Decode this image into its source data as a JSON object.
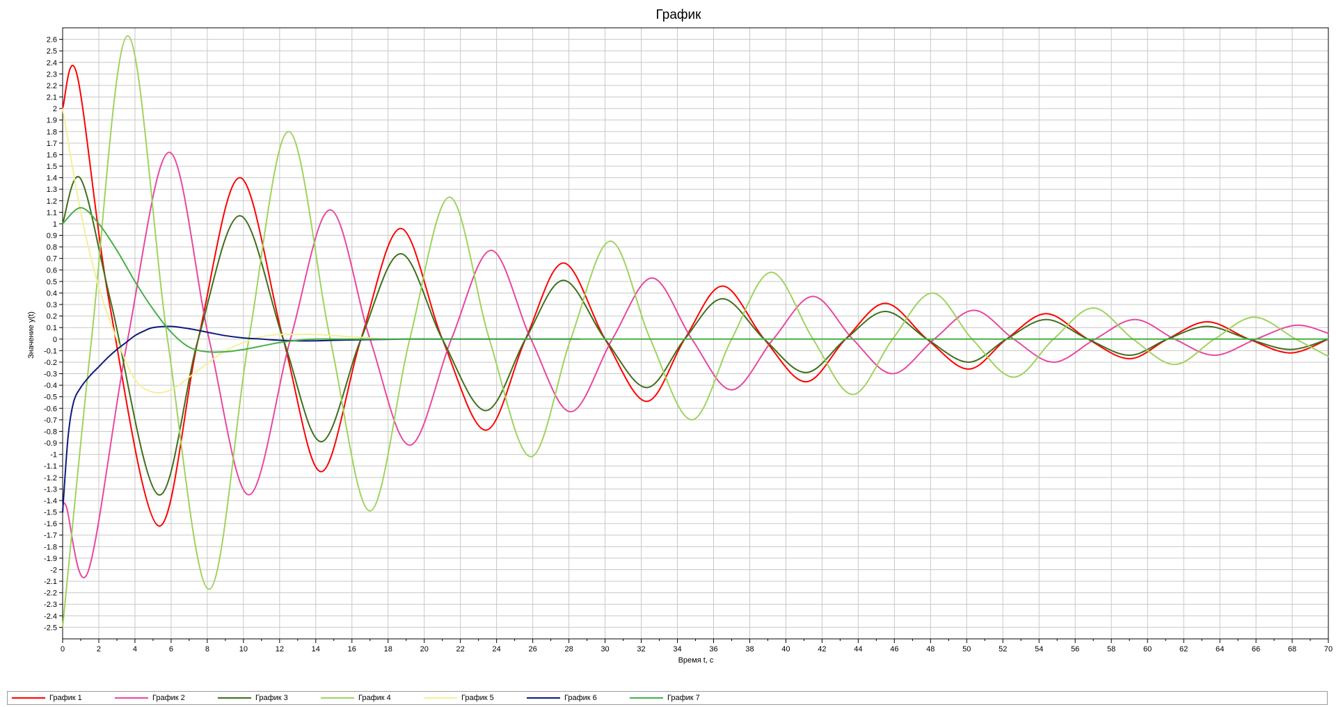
{
  "chart_data": {
    "type": "line",
    "title": "График",
    "xlabel": "Время t, с",
    "ylabel": "Значение y(t)",
    "xlim": [
      0,
      70
    ],
    "ylim": [
      -2.6,
      2.7
    ],
    "x_ticks": [
      0,
      2,
      4,
      6,
      8,
      10,
      12,
      14,
      16,
      18,
      20,
      22,
      24,
      26,
      28,
      30,
      32,
      34,
      36,
      38,
      40,
      42,
      44,
      46,
      48,
      50,
      52,
      54,
      56,
      58,
      60,
      62,
      64,
      66,
      68,
      70
    ],
    "y_tick_labels": [
      "2.6",
      "2.5",
      "2.4",
      "2.3",
      "2.2",
      "2.1",
      "2",
      "1.9",
      "1.8",
      "1.7",
      "1.6",
      "1.5",
      "1.4",
      "1.3",
      "1.2",
      "1.1",
      "1",
      "0.9",
      "0.8",
      "0.7",
      "0.6",
      "0.5",
      "0.4",
      "0.3",
      "0.2",
      "0.1",
      "0",
      "-0.1",
      "-0.2",
      "-0.3",
      "-0.4",
      "-0.5",
      "-0.6",
      "-0.7",
      "-0.8",
      "-0.9",
      "-1",
      "-1.1",
      "-1.2",
      "-1.3",
      "-1.4",
      "-1.5",
      "-1.6",
      "-1.7",
      "-1.8",
      "-1.9",
      "-2",
      "-2.1",
      "-2.2",
      "-2.3",
      "-2.4",
      "-2.5"
    ],
    "grid": true,
    "legend_position": "bottom",
    "series": [
      {
        "name": "График 1",
        "color": "#ff0000",
        "x": [
          0,
          0.8,
          2.6,
          5.3,
          7.5,
          9.8,
          12.2,
          14.3,
          16.5,
          18.7,
          21,
          23.4,
          25.6,
          27.7,
          30,
          32.3,
          34.4,
          36.5,
          38.8,
          41.1,
          43.3,
          45.5,
          47.8,
          50.1,
          52.2,
          54.4,
          56.7,
          59,
          61.1,
          63.3,
          65.6,
          67.9,
          70
        ],
        "y": [
          2,
          2.29,
          0.3,
          -1.62,
          0,
          1.4,
          0,
          -1.15,
          0,
          0.96,
          0,
          -0.79,
          0,
          0.66,
          0,
          -0.54,
          0,
          0.46,
          0,
          -0.37,
          0,
          0.31,
          0,
          -0.26,
          0,
          0.22,
          0,
          -0.17,
          0,
          0.15,
          0,
          -0.12,
          0
        ]
      },
      {
        "name": "График 2",
        "color": "#e8479e",
        "x": [
          0,
          0.2,
          1.4,
          3.6,
          5.9,
          8.1,
          10.3,
          12.6,
          14.8,
          17,
          19.2,
          21.5,
          23.7,
          25.9,
          28.1,
          30.4,
          32.6,
          34.8,
          37,
          39.3,
          41.5,
          43.7,
          45.9,
          48.2,
          50.4,
          52.6,
          54.8,
          57.1,
          59.3,
          61.5,
          63.7,
          66,
          68.2,
          70
        ],
        "y": [
          -1.5,
          -1.45,
          -2.02,
          0,
          1.62,
          0,
          -1.35,
          0,
          1.12,
          0,
          -0.92,
          0,
          0.77,
          0,
          -0.63,
          0,
          0.53,
          0,
          -0.44,
          0,
          0.37,
          0,
          -0.3,
          0,
          0.25,
          0,
          -0.2,
          0,
          0.17,
          0,
          -0.14,
          0,
          0.12,
          0.05
        ]
      },
      {
        "name": "График 3",
        "color": "#3f6e1a",
        "x": [
          0,
          1,
          2.7,
          5.3,
          7.5,
          9.8,
          12.2,
          14.3,
          16.5,
          18.7,
          21,
          23.4,
          25.6,
          27.7,
          30,
          32.3,
          34.4,
          36.5,
          38.8,
          41.1,
          43.3,
          45.5,
          47.8,
          50.1,
          52.2,
          54.4,
          56.7,
          59,
          61.1,
          63.3,
          65.6,
          67.9,
          70
        ],
        "y": [
          1,
          1.39,
          0.3,
          -1.35,
          0,
          1.07,
          0,
          -0.89,
          0,
          0.74,
          0,
          -0.62,
          0,
          0.51,
          0,
          -0.42,
          0,
          0.35,
          0,
          -0.29,
          0,
          0.24,
          0,
          -0.2,
          0,
          0.17,
          0,
          -0.14,
          0,
          0.11,
          0,
          -0.09,
          0
        ]
      },
      {
        "name": "График 4",
        "color": "#9fd35c",
        "x": [
          0,
          1.6,
          3.6,
          5.8,
          8.1,
          10.3,
          12.5,
          14.8,
          17,
          19.2,
          21.4,
          23.6,
          25.9,
          28.1,
          30.3,
          32.5,
          34.8,
          37,
          39.2,
          41.5,
          43.7,
          45.9,
          48.1,
          50.3,
          52.6,
          54.8,
          57,
          59.2,
          61.5,
          63.7,
          65.9,
          68.2,
          70
        ],
        "y": [
          -2.5,
          0,
          2.63,
          0,
          -2.17,
          0,
          1.8,
          0,
          -1.49,
          0,
          1.23,
          0,
          -1.02,
          0,
          0.85,
          0,
          -0.7,
          0,
          0.58,
          0,
          -0.48,
          0,
          0.4,
          0,
          -0.33,
          0,
          0.27,
          0,
          -0.22,
          0,
          0.19,
          0,
          -0.15
        ]
      },
      {
        "name": "График 5",
        "color": "#f3f09a",
        "x": [
          0,
          1,
          2,
          3,
          4,
          5,
          6,
          7,
          8,
          9,
          10,
          11,
          12,
          13,
          14,
          15,
          16,
          17,
          18,
          19,
          20
        ],
        "y": [
          2,
          1.1,
          0.45,
          0,
          -0.35,
          -0.46,
          -0.44,
          -0.33,
          -0.21,
          -0.1,
          -0.03,
          0.02,
          0.04,
          0.04,
          0.04,
          0.03,
          0.02,
          0.01,
          0,
          0,
          0
        ]
      },
      {
        "name": "График 6",
        "color": "#0a1a7a",
        "x": [
          0,
          0.3,
          0.6,
          1,
          1.5,
          2,
          2.5,
          3,
          3.5,
          4,
          4.5,
          5,
          6,
          7,
          8,
          9,
          10,
          11,
          12,
          13,
          14,
          15,
          16,
          17,
          18,
          19,
          20,
          21,
          22,
          23,
          24,
          25,
          26,
          27,
          28,
          28.6
        ],
        "y": [
          -1.5,
          -0.85,
          -0.55,
          -0.42,
          -0.32,
          -0.24,
          -0.16,
          -0.09,
          -0.03,
          0.03,
          0.07,
          0.1,
          0.11,
          0.09,
          0.06,
          0.03,
          0.01,
          0,
          -0.01,
          -0.015,
          -0.015,
          -0.01,
          -0.007,
          -0.004,
          -0.002,
          0,
          0,
          0,
          0,
          0,
          0,
          0,
          0,
          0,
          0,
          0
        ]
      },
      {
        "name": "График 7",
        "color": "#46b046",
        "x": [
          0,
          1,
          2,
          3,
          4,
          5,
          6,
          7,
          8,
          9,
          10,
          11,
          12,
          13,
          14,
          16,
          18,
          20,
          70
        ],
        "y": [
          1,
          1.14,
          1.0,
          0.77,
          0.5,
          0.26,
          0.06,
          -0.07,
          -0.11,
          -0.11,
          -0.09,
          -0.06,
          -0.03,
          -0.01,
          0,
          0,
          0,
          0,
          0
        ]
      }
    ]
  }
}
